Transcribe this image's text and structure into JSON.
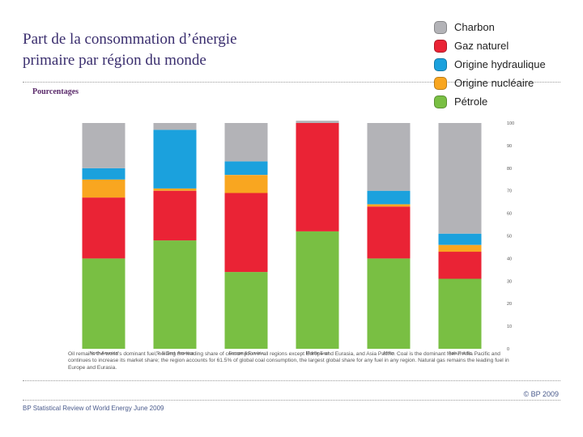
{
  "slide": {
    "title": "Part de la consommation d’énergie primaire par région du monde",
    "subtitle": "Pourcentages",
    "caption": "Oil remains the world’s dominant fuel, holding the leading share of consumption in all regions except Europe and Eurasia, and Asia Pacific. Coal is the dominant fuel in Asia Pacific and continues to increase its market share; the region accounts for 61.5% of global coal consumption, the largest global share for any fuel in any region. Natural gas remains the leading fuel in Europe and Eurasia.",
    "copyright": "© BP 2009",
    "source": "BP Statistical Review of World Energy June 2009"
  },
  "legend": [
    {
      "label": "Charbon",
      "color": "#b3b3b7"
    },
    {
      "label": "Gaz naturel",
      "color": "#ea2335"
    },
    {
      "label": "Origine hydraulique",
      "color": "#1ba1dd"
    },
    {
      "label": "Origine nucléaire",
      "color": "#f9a620"
    },
    {
      "label": "Pétrole",
      "color": "#79bf43"
    }
  ],
  "chart_data": {
    "type": "bar",
    "stacked": true,
    "categories": [
      "North America",
      "S. & Cent. America",
      "Europe & Eurasia",
      "Middle East",
      "Africa",
      "Asia Pacific"
    ],
    "series": [
      {
        "name": "Pétrole",
        "color": "#79bf43",
        "values": [
          40,
          48,
          34,
          52,
          40,
          31
        ]
      },
      {
        "name": "Gaz naturel",
        "color": "#ea2335",
        "values": [
          27,
          22,
          35,
          48,
          23,
          12
        ]
      },
      {
        "name": "Origine nucléaire",
        "color": "#f9a620",
        "values": [
          8,
          1,
          8,
          0,
          1,
          3
        ]
      },
      {
        "name": "Origine hydraulique",
        "color": "#1ba1dd",
        "values": [
          5,
          26,
          6,
          0,
          6,
          5
        ]
      },
      {
        "name": "Charbon",
        "color": "#b3b3b7",
        "values": [
          20,
          3,
          17,
          1,
          30,
          49
        ]
      }
    ],
    "yticks": [
      0,
      10,
      20,
      30,
      40,
      50,
      60,
      70,
      80,
      90,
      100
    ],
    "ylim": [
      0,
      100
    ],
    "grid": false
  }
}
